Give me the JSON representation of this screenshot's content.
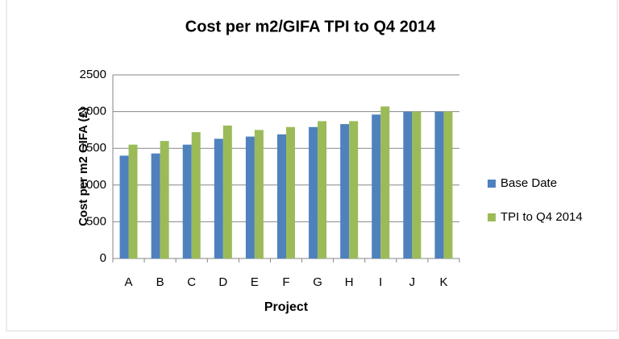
{
  "chart_data": {
    "type": "bar",
    "title": "Cost per m2/GIFA TPI to Q4 2014",
    "x_label": "Project",
    "y_label": "Cost per m2 GIFA (£)",
    "categories": [
      "A",
      "B",
      "C",
      "D",
      "E",
      "F",
      "G",
      "H",
      "I",
      "J",
      "K"
    ],
    "series": [
      {
        "name": "Base Date",
        "color": "#4f81bd",
        "values": [
          1400,
          1430,
          1550,
          1630,
          1660,
          1690,
          1790,
          1830,
          1960,
          2000,
          2000
        ]
      },
      {
        "name": "TPI to Q4 2014",
        "color": "#9bbb59",
        "values": [
          1550,
          1600,
          1720,
          1810,
          1750,
          1790,
          1870,
          1870,
          2070,
          2000,
          2000
        ]
      }
    ],
    "ylim": [
      0,
      2500
    ],
    "yticks": [
      0,
      500,
      1000,
      1500,
      2000,
      2500
    ],
    "grid": true,
    "legend": "right"
  }
}
